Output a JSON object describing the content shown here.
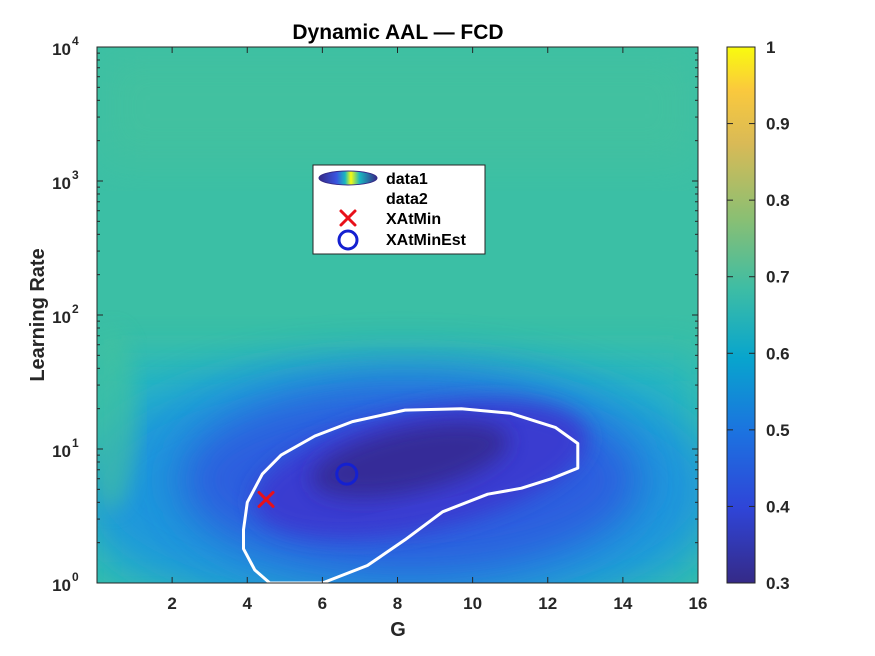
{
  "chart_data": {
    "type": "heatmap",
    "title": "Dynamic AAL — FCD",
    "xlabel": "G",
    "ylabel": "Learning Rate",
    "xlim": [
      0,
      16
    ],
    "ylim_log10": [
      0,
      4
    ],
    "yscale": "log",
    "xticks": [
      2,
      4,
      6,
      8,
      10,
      12,
      14,
      16
    ],
    "xtick_labels": [
      "2",
      "4",
      "6",
      "8",
      "10",
      "12",
      "14",
      "16"
    ],
    "yticks": [
      {
        "base": "10",
        "exp": "0",
        "value": 1
      },
      {
        "base": "10",
        "exp": "1",
        "value": 10
      },
      {
        "base": "10",
        "exp": "2",
        "value": 100
      },
      {
        "base": "10",
        "exp": "3",
        "value": 1000
      },
      {
        "base": "10",
        "exp": "4",
        "value": 10000
      }
    ],
    "colorbar": {
      "min": 0.3,
      "max": 1,
      "ticks": [
        0.3,
        0.4,
        0.5,
        0.6,
        0.7,
        0.8,
        0.9,
        1
      ],
      "tick_labels": [
        "0.3",
        "0.4",
        "0.5",
        "0.6",
        "0.7",
        "0.8",
        "0.9",
        "1"
      ],
      "colormap": "parula"
    },
    "surface": {
      "background_value": 0.7,
      "minimum_value": 0.3,
      "minimum_center": {
        "x": 8.5,
        "y": 8
      }
    },
    "contour": {
      "color": "#ffffff",
      "points": [
        {
          "x": 4.6,
          "y": 1.0
        },
        {
          "x": 6.0,
          "y": 1.0
        },
        {
          "x": 7.2,
          "y": 1.35
        },
        {
          "x": 8.2,
          "y": 2.1
        },
        {
          "x": 9.2,
          "y": 3.4
        },
        {
          "x": 10.4,
          "y": 4.6
        },
        {
          "x": 11.3,
          "y": 5.1
        },
        {
          "x": 12.1,
          "y": 6.0
        },
        {
          "x": 12.8,
          "y": 7.2
        },
        {
          "x": 12.8,
          "y": 11.0
        },
        {
          "x": 12.2,
          "y": 14.5
        },
        {
          "x": 11.0,
          "y": 18.5
        },
        {
          "x": 9.7,
          "y": 20.0
        },
        {
          "x": 8.2,
          "y": 19.5
        },
        {
          "x": 6.8,
          "y": 16.0
        },
        {
          "x": 5.8,
          "y": 12.5
        },
        {
          "x": 4.9,
          "y": 9.0
        },
        {
          "x": 4.4,
          "y": 6.5
        },
        {
          "x": 4.0,
          "y": 4.0
        },
        {
          "x": 3.9,
          "y": 2.5
        },
        {
          "x": 3.9,
          "y": 1.8
        },
        {
          "x": 4.2,
          "y": 1.25
        }
      ]
    },
    "series": [
      {
        "name": "data1",
        "kind": "surface"
      },
      {
        "name": "data2",
        "kind": "contour"
      },
      {
        "name": "XAtMin",
        "kind": "marker",
        "marker": "x",
        "color": "#e8101a",
        "x": 4.5,
        "y": 4.2
      },
      {
        "name": "XAtMinEst",
        "kind": "marker",
        "marker": "o",
        "color": "#1420d0",
        "x": 6.65,
        "y": 6.5
      }
    ],
    "legend": {
      "placement": "upper-center",
      "entries": [
        "data1",
        "data2",
        "XAtMin",
        "XAtMinEst"
      ]
    }
  }
}
